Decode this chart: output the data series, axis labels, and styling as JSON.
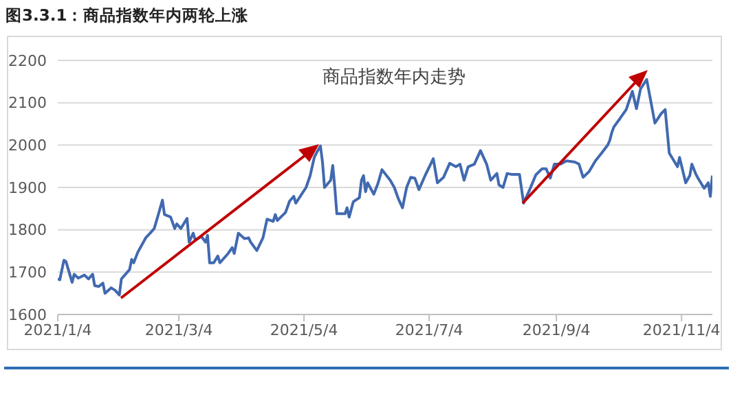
{
  "chart_data": {
    "type": "line",
    "title": "商品指数年内走势",
    "annotations": [
      "图3.3.1：商品指数年内两轮上涨"
    ],
    "x": [
      "2021-01-04",
      "2021-01-05",
      "2021-01-07",
      "2021-01-08",
      "2021-01-11",
      "2021-01-12",
      "2021-01-14",
      "2021-01-17",
      "2021-01-19",
      "2021-01-21",
      "2021-01-22",
      "2021-01-24",
      "2021-01-26",
      "2021-01-27",
      "2021-01-30",
      "2021-02-01",
      "2021-02-03",
      "2021-02-04",
      "2021-02-08",
      "2021-02-09",
      "2021-02-10",
      "2021-02-12",
      "2021-02-16",
      "2021-02-18",
      "2021-02-20",
      "2021-02-22",
      "2021-02-24",
      "2021-02-25",
      "2021-02-28",
      "2021-03-02",
      "2021-03-03",
      "2021-03-05",
      "2021-03-08",
      "2021-03-09",
      "2021-03-11",
      "2021-03-12",
      "2021-03-15",
      "2021-03-17",
      "2021-03-18",
      "2021-03-19",
      "2021-03-21",
      "2021-03-23",
      "2021-03-24",
      "2021-03-28",
      "2021-03-30",
      "2021-03-31",
      "2021-04-02",
      "2021-04-05",
      "2021-04-07",
      "2021-04-08",
      "2021-04-11",
      "2021-04-14",
      "2021-04-16",
      "2021-04-19",
      "2021-04-20",
      "2021-04-21",
      "2021-04-25",
      "2021-04-27",
      "2021-04-29",
      "2021-04-30",
      "2021-05-05",
      "2021-05-07",
      "2021-05-09",
      "2021-05-10",
      "2021-05-12",
      "2021-05-13",
      "2021-05-14",
      "2021-05-17",
      "2021-05-18",
      "2021-05-19",
      "2021-05-20",
      "2021-05-24",
      "2021-05-25",
      "2021-05-26",
      "2021-05-28",
      "2021-05-31",
      "2021-06-01",
      "2021-06-02",
      "2021-06-03",
      "2021-06-04",
      "2021-06-07",
      "2021-06-09",
      "2021-06-11",
      "2021-06-15",
      "2021-06-17",
      "2021-06-19",
      "2021-06-21",
      "2021-06-23",
      "2021-06-25",
      "2021-06-27",
      "2021-06-29",
      "2021-07-02",
      "2021-07-06",
      "2021-07-08",
      "2021-07-11",
      "2021-07-14",
      "2021-07-17",
      "2021-07-19",
      "2021-07-21",
      "2021-07-23",
      "2021-07-26",
      "2021-07-29",
      "2021-08-01",
      "2021-08-03",
      "2021-08-06",
      "2021-08-07",
      "2021-08-09",
      "2021-08-11",
      "2021-08-13",
      "2021-08-17",
      "2021-08-19",
      "2021-08-22",
      "2021-08-25",
      "2021-08-28",
      "2021-08-30",
      "2021-09-01",
      "2021-09-03",
      "2021-09-06",
      "2021-09-09",
      "2021-09-13",
      "2021-09-15",
      "2021-09-17",
      "2021-09-20",
      "2021-09-23",
      "2021-09-26",
      "2021-09-29",
      "2021-09-30",
      "2021-10-01",
      "2021-10-02",
      "2021-10-05",
      "2021-10-08",
      "2021-10-11",
      "2021-10-13",
      "2021-10-15",
      "2021-10-18",
      "2021-10-22",
      "2021-10-25",
      "2021-10-27",
      "2021-10-29",
      "2021-11-02",
      "2021-11-03",
      "2021-11-06",
      "2021-11-08",
      "2021-11-09",
      "2021-11-11",
      "2021-11-12",
      "2021-11-15",
      "2021-11-17",
      "2021-11-18",
      "2021-11-19"
    ],
    "series": [
      {
        "color": "#4169b0",
        "values": [
          1684,
          1682,
          1728,
          1725,
          1676,
          1695,
          1686,
          1693,
          1684,
          1695,
          1668,
          1666,
          1674,
          1650,
          1663,
          1657,
          1646,
          1684,
          1706,
          1730,
          1722,
          1747,
          1782,
          1792,
          1803,
          1836,
          1870,
          1836,
          1830,
          1803,
          1814,
          1803,
          1827,
          1771,
          1792,
          1776,
          1784,
          1771,
          1787,
          1722,
          1722,
          1738,
          1722,
          1744,
          1758,
          1744,
          1792,
          1779,
          1781,
          1771,
          1751,
          1781,
          1825,
          1820,
          1836,
          1822,
          1841,
          1868,
          1879,
          1863,
          1900,
          1928,
          1971,
          1981,
          1998,
          1960,
          1900,
          1917,
          1952,
          1900,
          1838,
          1838,
          1852,
          1830,
          1866,
          1876,
          1917,
          1928,
          1890,
          1911,
          1884,
          1909,
          1942,
          1917,
          1900,
          1873,
          1852,
          1900,
          1924,
          1922,
          1895,
          1928,
          1968,
          1911,
          1924,
          1957,
          1949,
          1955,
          1917,
          1949,
          1955,
          1987,
          1955,
          1917,
          1933,
          1906,
          1900,
          1933,
          1931,
          1931,
          1863,
          1895,
          1930,
          1944,
          1944,
          1922,
          1955,
          1955,
          1963,
          1960,
          1955,
          1924,
          1938,
          1963,
          1981,
          2000,
          2011,
          2030,
          2043,
          2063,
          2084,
          2127,
          2086,
          2133,
          2155,
          2052,
          2074,
          2084,
          1981,
          1949,
          1971,
          1911,
          1928,
          1955,
          1931,
          1922,
          1898,
          1911,
          1879,
          1928
        ]
      }
    ],
    "xlim": [
      "2021-01-04",
      "2021-11-19"
    ],
    "xticks": [
      {
        "value": "2021-01-04",
        "label": "2021/1/4"
      },
      {
        "value": "2021-03-04",
        "label": "2021/3/4"
      },
      {
        "value": "2021-05-04",
        "label": "2021/5/4"
      },
      {
        "value": "2021-07-04",
        "label": "2021/7/4"
      },
      {
        "value": "2021-09-04",
        "label": "2021/9/4"
      },
      {
        "value": "2021-11-04",
        "label": "2021/11/4"
      }
    ],
    "ylim": [
      1600,
      2200
    ],
    "yticks": [
      1600,
      1700,
      1800,
      1900,
      2000,
      2100,
      2200
    ],
    "grid": "y",
    "legend": false,
    "marker": "none",
    "line_style": "solid"
  }
}
